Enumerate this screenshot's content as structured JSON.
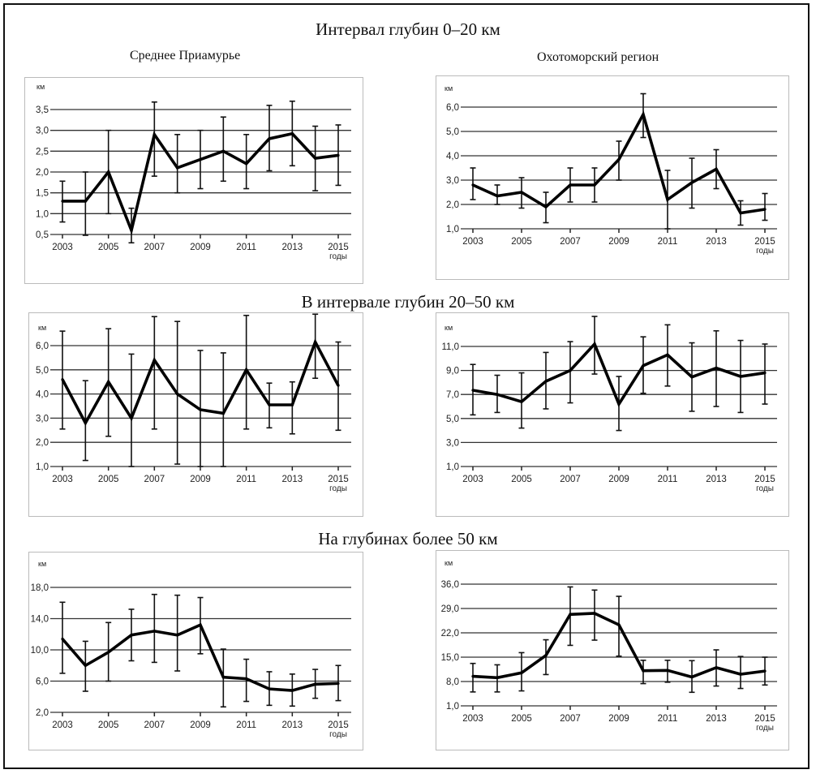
{
  "headings": {
    "group1": "Интервал глубин 0–20 км",
    "group2": "В интервале глубин 20–50 км",
    "group3": "На глубинах более 50 км",
    "left_region": "Среднее Приамурье",
    "right_region": "Охотоморский регион"
  },
  "chart_data": [
    {
      "type": "line",
      "group": "Интервал глубин 0–20 км",
      "region": "Среднее Приамурье",
      "ylabel": "км",
      "xlabel": "годы",
      "x": [
        2003,
        2004,
        2005,
        2006,
        2007,
        2008,
        2009,
        2010,
        2011,
        2012,
        2013,
        2014,
        2015
      ],
      "x_tick_labels": [
        "2003",
        "2005",
        "2007",
        "2009",
        "2011",
        "2013",
        "2015"
      ],
      "y_tick_labels": [
        "0,5",
        "1,0",
        "1,5",
        "2,0",
        "2,5",
        "3,0",
        "3,5"
      ],
      "yticks": [
        0.5,
        1.0,
        1.5,
        2.0,
        2.5,
        3.0,
        3.5
      ],
      "ylim": [
        0.5,
        3.5
      ],
      "grid": true,
      "values": [
        1.3,
        1.3,
        2.0,
        0.6,
        2.9,
        2.1,
        2.3,
        2.5,
        2.2,
        2.8,
        2.92,
        2.33,
        2.4
      ],
      "err_low": [
        0.8,
        0.48,
        1.0,
        0.3,
        1.9,
        1.5,
        1.6,
        1.78,
        1.6,
        2.03,
        2.15,
        1.55,
        1.68
      ],
      "err_high": [
        1.78,
        2.0,
        3.0,
        1.13,
        3.68,
        2.9,
        3.0,
        3.32,
        2.9,
        3.6,
        3.7,
        3.1,
        3.13
      ]
    },
    {
      "type": "line",
      "group": "Интервал глубин 0–20 км",
      "region": "Охотоморский регион",
      "ylabel": "км",
      "xlabel": "годы",
      "x": [
        2003,
        2004,
        2005,
        2006,
        2007,
        2008,
        2009,
        2010,
        2011,
        2012,
        2013,
        2014,
        2015
      ],
      "x_tick_labels": [
        "2003",
        "2005",
        "2007",
        "2009",
        "2011",
        "2013",
        "2015"
      ],
      "y_tick_labels": [
        "1,0",
        "2,0",
        "3,0",
        "4,0",
        "5,0",
        "6,0"
      ],
      "yticks": [
        1,
        2,
        3,
        4,
        5,
        6
      ],
      "ylim": [
        1,
        6
      ],
      "grid": true,
      "values": [
        2.8,
        2.35,
        2.5,
        1.9,
        2.8,
        2.8,
        3.85,
        5.7,
        2.2,
        2.9,
        3.45,
        1.65,
        1.8
      ],
      "err_low": [
        2.2,
        2.0,
        1.85,
        1.25,
        2.1,
        2.1,
        3.0,
        4.75,
        1.0,
        1.85,
        2.65,
        1.15,
        1.35
      ],
      "err_high": [
        3.5,
        2.8,
        3.1,
        2.5,
        3.5,
        3.5,
        4.6,
        6.55,
        3.4,
        3.9,
        4.25,
        2.15,
        2.45
      ]
    },
    {
      "type": "line",
      "group": "В интервале глубин 20–50 км",
      "region": "Среднее Приамурье",
      "ylabel": "км",
      "xlabel": "годы",
      "x": [
        2003,
        2004,
        2005,
        2006,
        2007,
        2008,
        2009,
        2010,
        2011,
        2012,
        2013,
        2014,
        2015
      ],
      "x_tick_labels": [
        "2003",
        "2005",
        "2007",
        "2009",
        "2011",
        "2013",
        "2015"
      ],
      "y_tick_labels": [
        "1,0",
        "2,0",
        "3,0",
        "4,0",
        "5,0",
        "6,0"
      ],
      "yticks": [
        1,
        2,
        3,
        4,
        5,
        6
      ],
      "ylim": [
        1,
        6
      ],
      "grid": true,
      "values": [
        4.6,
        2.8,
        4.5,
        3.0,
        5.4,
        4.0,
        3.35,
        3.2,
        5.0,
        3.55,
        3.55,
        6.15,
        4.35
      ],
      "err_low": [
        2.55,
        1.25,
        2.25,
        1.0,
        2.55,
        1.1,
        1.0,
        1.0,
        2.55,
        2.6,
        2.35,
        4.65,
        2.5
      ],
      "err_high": [
        6.6,
        4.55,
        6.7,
        5.65,
        7.2,
        7.0,
        5.8,
        5.7,
        7.25,
        4.45,
        4.5,
        7.3,
        6.15
      ]
    },
    {
      "type": "line",
      "group": "В интервале глубин 20–50 км",
      "region": "Охотоморский регион",
      "ylabel": "км",
      "xlabel": "годы",
      "x": [
        2003,
        2004,
        2005,
        2006,
        2007,
        2008,
        2009,
        2010,
        2011,
        2012,
        2013,
        2014,
        2015
      ],
      "x_tick_labels": [
        "2003",
        "2005",
        "2007",
        "2009",
        "2011",
        "2013",
        "2015"
      ],
      "y_tick_labels": [
        "1,0",
        "3,0",
        "5,0",
        "7,0",
        "9,0",
        "11,0"
      ],
      "yticks": [
        1,
        3,
        5,
        7,
        9,
        11
      ],
      "ylim": [
        1,
        11
      ],
      "grid": true,
      "values": [
        7.35,
        7.0,
        6.4,
        8.1,
        9.0,
        11.2,
        6.2,
        9.4,
        10.3,
        8.45,
        9.2,
        8.5,
        8.8
      ],
      "err_low": [
        5.3,
        5.5,
        4.2,
        5.8,
        6.3,
        8.7,
        4.0,
        7.1,
        7.7,
        5.6,
        6.0,
        5.5,
        6.2
      ],
      "err_high": [
        9.5,
        8.6,
        8.8,
        10.5,
        11.4,
        13.5,
        8.5,
        11.8,
        12.8,
        11.3,
        12.3,
        11.5,
        11.2
      ]
    },
    {
      "type": "line",
      "group": "На глубинах более 50 км",
      "region": "Среднее Приамурье",
      "ylabel": "км",
      "xlabel": "годы",
      "x": [
        2003,
        2004,
        2005,
        2006,
        2007,
        2008,
        2009,
        2010,
        2011,
        2012,
        2013,
        2014,
        2015
      ],
      "x_tick_labels": [
        "2003",
        "2005",
        "2007",
        "2009",
        "2011",
        "2013",
        "2015"
      ],
      "y_tick_labels": [
        "2,0",
        "6,0",
        "10,0",
        "14,0",
        "18,0"
      ],
      "yticks": [
        2,
        6,
        10,
        14,
        18
      ],
      "ylim": [
        2,
        18
      ],
      "grid": true,
      "values": [
        11.4,
        8.0,
        9.7,
        11.9,
        12.4,
        11.9,
        13.2,
        6.5,
        6.3,
        5.0,
        4.8,
        5.6,
        5.7
      ],
      "err_low": [
        7.0,
        4.7,
        6.0,
        8.6,
        8.4,
        7.3,
        9.5,
        2.7,
        3.4,
        2.9,
        2.8,
        3.8,
        3.5
      ],
      "err_high": [
        16.1,
        11.1,
        13.5,
        15.2,
        17.1,
        17.0,
        16.7,
        10.1,
        8.8,
        7.2,
        6.9,
        7.5,
        8.0
      ]
    },
    {
      "type": "line",
      "group": "На глубинах более 50 км",
      "region": "Охотоморский регион",
      "ylabel": "км",
      "xlabel": "годы",
      "x": [
        2003,
        2004,
        2005,
        2006,
        2007,
        2008,
        2009,
        2010,
        2011,
        2012,
        2013,
        2014,
        2015
      ],
      "x_tick_labels": [
        "2003",
        "2005",
        "2007",
        "2009",
        "2011",
        "2013",
        "2015"
      ],
      "y_tick_labels": [
        "1,0",
        "8,0",
        "15,0",
        "22,0",
        "29,0",
        "36,0"
      ],
      "yticks": [
        1,
        8,
        15,
        22,
        29,
        36
      ],
      "ylim": [
        1,
        36
      ],
      "grid": true,
      "values": [
        9.5,
        9.1,
        10.5,
        15.5,
        27.3,
        27.6,
        24.3,
        11.1,
        11.2,
        9.3,
        12.0,
        10.1,
        11.0
      ],
      "err_low": [
        5.0,
        5.0,
        5.3,
        10.0,
        18.4,
        19.9,
        15.3,
        7.4,
        7.8,
        4.9,
        6.7,
        6.0,
        7.0
      ],
      "err_high": [
        13.2,
        12.8,
        16.3,
        20.0,
        35.2,
        34.3,
        32.5,
        14.1,
        14.1,
        14.0,
        17.1,
        15.2,
        15.0
      ]
    }
  ]
}
